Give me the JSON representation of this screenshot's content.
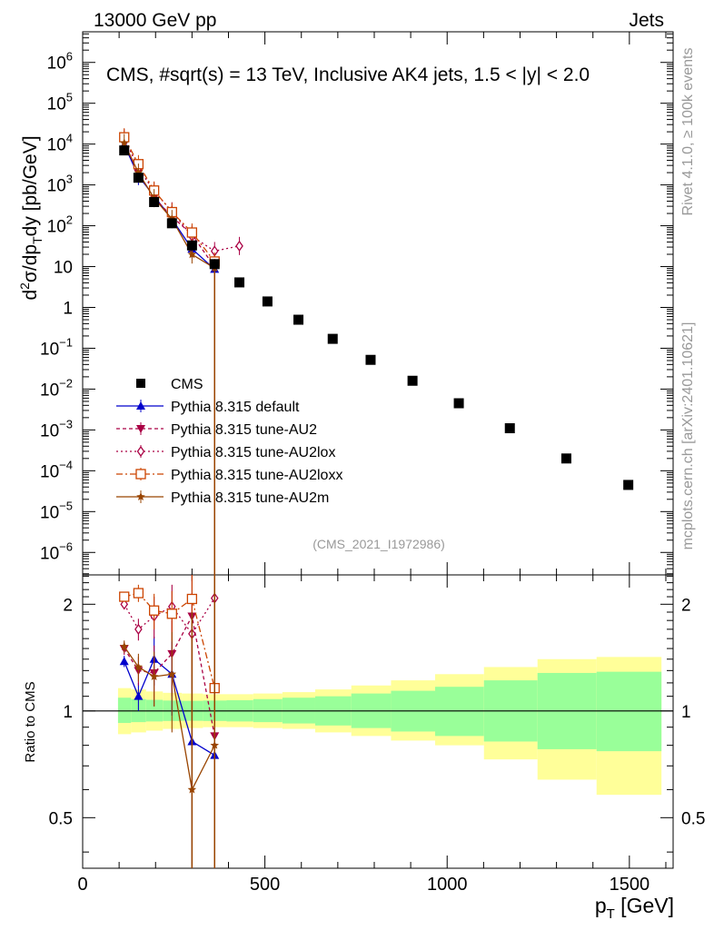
{
  "header": {
    "energy_label": "13000 GeV pp",
    "category_label": "Jets",
    "plot_title": "CMS, #sqrt(s) = 13 TeV, Inclusive AK4 jets, 1.5 < |y| < 2.0",
    "analysis_id": "(CMS_2021_I1972986)",
    "rivet_label": "Rivet 4.1.0, ≥ 100k events",
    "source_label": "mcplots.cern.ch [arXiv:2401.10621]"
  },
  "axes": {
    "main_ylabel": "d²σ/dp_T dy [pb/GeV]",
    "ratio_ylabel": "Ratio to CMS",
    "xlabel": "p_T [GeV]"
  },
  "chart_data": {
    "type": "scatter",
    "x_range": [
      0,
      1620
    ],
    "x_ticks": [
      0,
      500,
      1000,
      1500
    ],
    "main_log_range": [
      -6.55,
      6.75
    ],
    "main_ticks": [
      {
        "exp": -6,
        "label": "10",
        "sup": "−6"
      },
      {
        "exp": -5,
        "label": "10",
        "sup": "−5"
      },
      {
        "exp": -4,
        "label": "10",
        "sup": "−4"
      },
      {
        "exp": -3,
        "label": "10",
        "sup": "−3"
      },
      {
        "exp": -2,
        "label": "10",
        "sup": "−2"
      },
      {
        "exp": -1,
        "label": "10",
        "sup": "−1"
      },
      {
        "exp": 0,
        "label": "1",
        "sup": ""
      },
      {
        "exp": 1,
        "label": "10",
        "sup": ""
      },
      {
        "exp": 2,
        "label": "10",
        "sup": "2"
      },
      {
        "exp": 3,
        "label": "10",
        "sup": "3"
      },
      {
        "exp": 4,
        "label": "10",
        "sup": "4"
      },
      {
        "exp": 5,
        "label": "10",
        "sup": "5"
      },
      {
        "exp": 6,
        "label": "10",
        "sup": "6"
      }
    ],
    "ratio_range": [
      0.36,
      2.42
    ],
    "ratio_ticks": [
      0.5,
      1,
      2
    ],
    "bin_edges": [
      97,
      133,
      174,
      220,
      272,
      330,
      395,
      468,
      548,
      638,
      737,
      846,
      967,
      1101,
      1248,
      1410,
      1588
    ],
    "cms": {
      "name": "CMS",
      "x": [
        114,
        153,
        196,
        245,
        300,
        362,
        430,
        507,
        592,
        686,
        790,
        905,
        1032,
        1172,
        1327,
        1497
      ],
      "y": [
        7000,
        1500,
        380,
        115,
        33,
        11.5,
        4.1,
        1.4,
        0.5,
        0.17,
        0.052,
        0.016,
        0.0045,
        0.0011,
        0.0002,
        4.5e-05
      ],
      "band_inner": [
        0.075,
        0.07,
        0.066,
        0.063,
        0.062,
        0.063,
        0.066,
        0.07,
        0.078,
        0.09,
        0.105,
        0.125,
        0.15,
        0.18,
        0.22,
        0.23
      ],
      "band_outer": [
        0.14,
        0.13,
        0.12,
        0.11,
        0.105,
        0.1,
        0.1,
        0.105,
        0.11,
        0.13,
        0.15,
        0.175,
        0.2,
        0.27,
        0.36,
        0.42
      ],
      "band_inner_up": [
        0.09,
        0.08,
        0.075,
        0.07,
        0.068,
        0.07,
        0.072,
        0.08,
        0.09,
        0.1,
        0.12,
        0.14,
        0.17,
        0.22,
        0.28,
        0.29
      ],
      "band_outer_up": [
        0.16,
        0.15,
        0.135,
        0.125,
        0.12,
        0.115,
        0.115,
        0.12,
        0.13,
        0.15,
        0.18,
        0.22,
        0.27,
        0.33,
        0.4,
        0.42
      ]
    },
    "series": [
      {
        "name": "Pythia 8.315 default",
        "color": "#0000cc",
        "dash": "",
        "marker": "triangle-up",
        "x": [
          114,
          153,
          196,
          245,
          300,
          362
        ],
        "ratio": [
          1.38,
          1.1,
          1.4,
          1.27,
          0.82,
          0.75
        ],
        "ratio_err": [
          0.05,
          0.1,
          0.22,
          0.3,
          0.45,
          1.0
        ]
      },
      {
        "name": "Pythia 8.315 tune-AU2",
        "color": "#aa0044",
        "dash": "4,3",
        "marker": "triangle-down",
        "x": [
          114,
          153,
          196,
          245,
          300,
          362
        ],
        "ratio": [
          1.5,
          1.3,
          1.28,
          1.45,
          1.85,
          0.85
        ],
        "ratio_err": [
          0.06,
          0.12,
          0.25,
          0.35,
          0.6,
          1.0
        ]
      },
      {
        "name": "Pythia 8.315 tune-AU2lox",
        "color": "#aa0044",
        "dash": "2,3",
        "marker": "diamond",
        "x": [
          114,
          153,
          196,
          245,
          300,
          362,
          430
        ],
        "ratio": [
          2.0,
          1.7,
          1.85,
          1.97,
          1.65,
          2.08,
          null
        ],
        "ratio_err": [
          0.06,
          0.12,
          0.25,
          0.3,
          0.5,
          0.6,
          0
        ],
        "y": [
          14000,
          2550,
          700,
          226,
          55,
          24,
          32
        ]
      },
      {
        "name": "Pythia 8.315 tune-AU2loxx",
        "color": "#cc4400",
        "dash": "7,3,2,3",
        "marker": "square-open",
        "x": [
          114,
          153,
          196,
          245,
          300,
          362
        ],
        "ratio": [
          2.1,
          2.15,
          1.92,
          1.88,
          2.07,
          1.16
        ],
        "ratio_err": [
          0.05,
          0.12,
          0.22,
          0.3,
          0.5,
          1.0
        ]
      },
      {
        "name": "Pythia 8.315 tune-AU2m",
        "color": "#994400",
        "dash": "",
        "marker": "star",
        "x": [
          114,
          153,
          196,
          245,
          300,
          362
        ],
        "ratio": [
          1.52,
          1.33,
          1.25,
          1.27,
          0.6,
          0.8
        ],
        "ratio_err": [
          0.06,
          0.12,
          0.22,
          0.4,
          1.0,
          1.0
        ]
      }
    ]
  }
}
